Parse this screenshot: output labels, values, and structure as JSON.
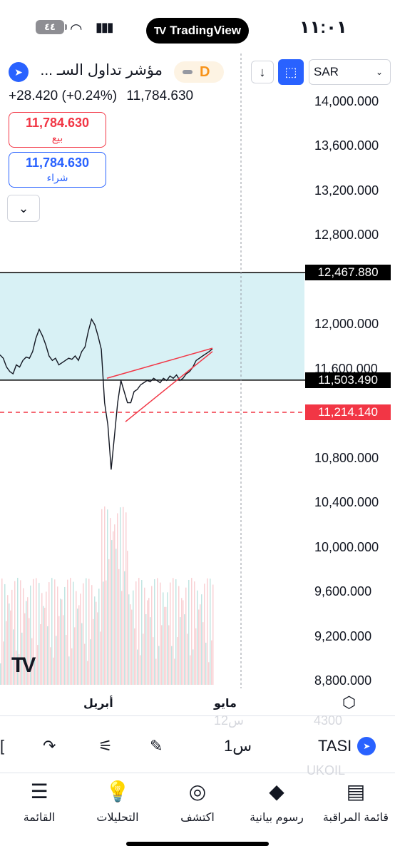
{
  "status_bar": {
    "time": "١١:٠١",
    "battery": "٤٤",
    "app_pill": "TradingView"
  },
  "header": {
    "symbol_title": "مؤشر تداول السـ ...",
    "interval_badge": "D",
    "currency": "SAR",
    "change": "+28.420 (+0.24%)",
    "last_price": "11,784.630"
  },
  "quote": {
    "sell_price": "11,784.630",
    "sell_label": "بيع",
    "buy_price": "11,784.630",
    "buy_label": "شراء"
  },
  "chart_data": {
    "type": "line",
    "price_axis": [
      "14,000.000",
      "13,600.000",
      "13,200.000",
      "12,800.000",
      "12,000.000",
      "11,600.000",
      "10,800.000",
      "10,400.000",
      "10,000.000",
      "9,600.000",
      "9,200.000",
      "8,800.000"
    ],
    "time_axis": [
      "أبريل",
      "مايو"
    ],
    "markers": [
      {
        "label": "12,467.880",
        "value": 12467.88,
        "color": "#000000"
      },
      {
        "label": "11,503.490",
        "value": 11503.49,
        "color": "#000000"
      },
      {
        "label": "11,214.140",
        "value": 11214.14,
        "color": "#f23645"
      }
    ],
    "zone": {
      "from": 11503.49,
      "to": 12467.88,
      "color": "#d8f1f5"
    },
    "series": [
      {
        "values": [
          11730,
          11700,
          11620,
          11580,
          11560,
          11640,
          11620,
          11680,
          11710,
          11700,
          11760,
          11880,
          11960,
          11900,
          11820,
          11720,
          11680,
          11700,
          11640,
          11660,
          11680,
          11700,
          11690,
          11720,
          11680,
          11760,
          11800,
          11940,
          12050,
          12000,
          11900,
          11780,
          11300,
          11100,
          10700,
          11000,
          11300,
          11500,
          11400,
          11300,
          11300,
          11400,
          11420,
          11460,
          11480,
          11500,
          11490,
          11520,
          11500,
          11480,
          11520,
          11500,
          11540,
          11520,
          11550,
          11500,
          11520,
          11560,
          11580,
          11620,
          11680,
          11700,
          11720,
          11740,
          11760,
          11784
        ]
      }
    ],
    "colors": {
      "up": "#089981",
      "down": "#f23645",
      "accent": "#2962ff"
    }
  },
  "toolbar": {
    "symbol": "TASI",
    "interval": "1س",
    "ghost_top_left": "12س",
    "ghost_top_right": "4300",
    "ghost_bottom_right": "UKOIL"
  },
  "nav": {
    "watchlist": "قائمة المراقبة",
    "charts": "رسوم بيانية",
    "explore": "اكتشف",
    "ideas": "التحليلات",
    "menu": "القائمة"
  }
}
